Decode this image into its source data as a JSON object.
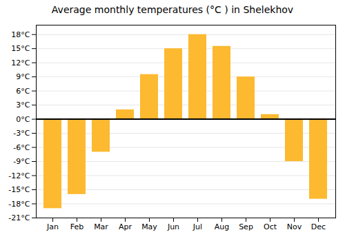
{
  "chart_data": {
    "type": "bar",
    "title": "Average monthly temperatures (°C ) in Shelekhov",
    "categories": [
      "Jan",
      "Feb",
      "Mar",
      "Apr",
      "May",
      "Jun",
      "Jul",
      "Aug",
      "Sep",
      "Oct",
      "Nov",
      "Dec"
    ],
    "values": [
      -19,
      -16,
      -7,
      2,
      9.5,
      15,
      18,
      15.5,
      9,
      1,
      -9,
      -17
    ],
    "color": "#FDB930",
    "ylim": [
      -21,
      20
    ],
    "yticks": [
      {
        "value": -21,
        "label": "-21°C"
      },
      {
        "value": -18,
        "label": "-18°C"
      },
      {
        "value": -15,
        "label": "-15°C"
      },
      {
        "value": -12,
        "label": "-12°C"
      },
      {
        "value": -9,
        "label": "-9°C"
      },
      {
        "value": -6,
        "label": "-6°C"
      },
      {
        "value": -3,
        "label": "-3°C"
      },
      {
        "value": 0,
        "label": "0°C"
      },
      {
        "value": 3,
        "label": "3°C"
      },
      {
        "value": 6,
        "label": "6°C"
      },
      {
        "value": 9,
        "label": "9°C"
      },
      {
        "value": 12,
        "label": "12°C"
      },
      {
        "value": 15,
        "label": "15°C"
      },
      {
        "value": 18,
        "label": "18°C"
      }
    ],
    "grid": true
  }
}
